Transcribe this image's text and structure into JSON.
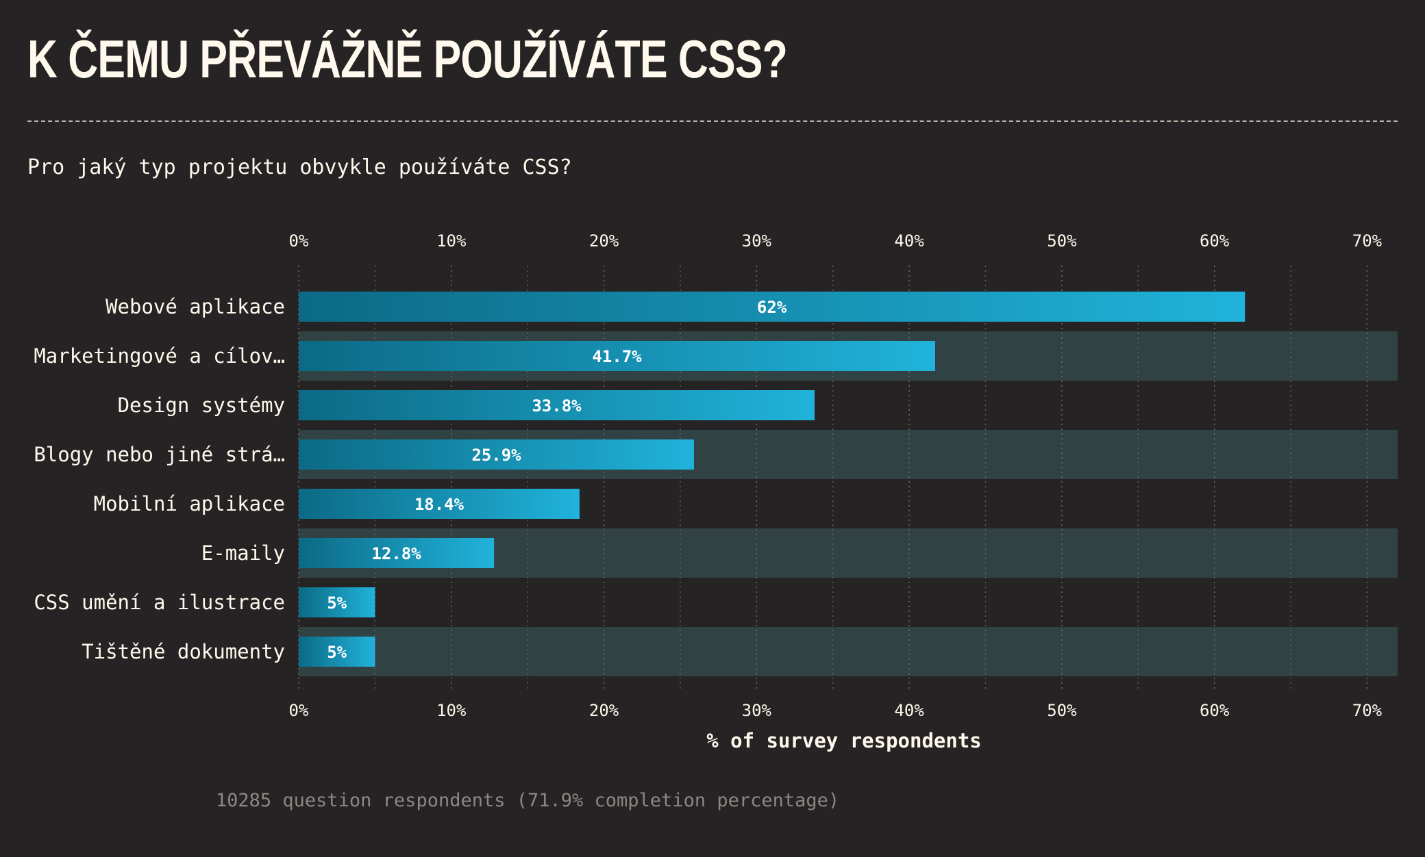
{
  "page": {
    "title": "K ČEMU PŘEVÁŽNĚ POUŽÍVÁTE CSS?",
    "subtitle": "Pro jaký typ projektu obvykle používáte CSS?",
    "footnote": "10285 question respondents (71.9% completion percentage)"
  },
  "chart_data": {
    "type": "bar",
    "orientation": "horizontal",
    "categories": [
      "Webové aplikace",
      "Marketingové a cílov…",
      "Design systémy",
      "Blogy nebo jiné strá…",
      "Mobilní aplikace",
      "E-maily",
      "CSS umění a ilustrace",
      "Tištěné dokumenty"
    ],
    "values": [
      62,
      41.7,
      33.8,
      25.9,
      18.4,
      12.8,
      5,
      5
    ],
    "value_labels": [
      "62%",
      "41.7%",
      "33.8%",
      "25.9%",
      "18.4%",
      "12.8%",
      "5%",
      "5%"
    ],
    "xlabel": "% of survey respondents",
    "xlim": [
      0,
      72
    ],
    "ticks": [
      0,
      10,
      20,
      30,
      40,
      50,
      60,
      70
    ],
    "tick_labels": [
      "0%",
      "10%",
      "20%",
      "30%",
      "40%",
      "50%",
      "60%",
      "70%"
    ],
    "grid": true,
    "grid_minor": true,
    "colors": {
      "bar_start": "#0c6a85",
      "bar_end": "#20b3db",
      "row_stripe": "#314245",
      "grid": "#6f6a68",
      "text": "#fff8ec"
    }
  }
}
